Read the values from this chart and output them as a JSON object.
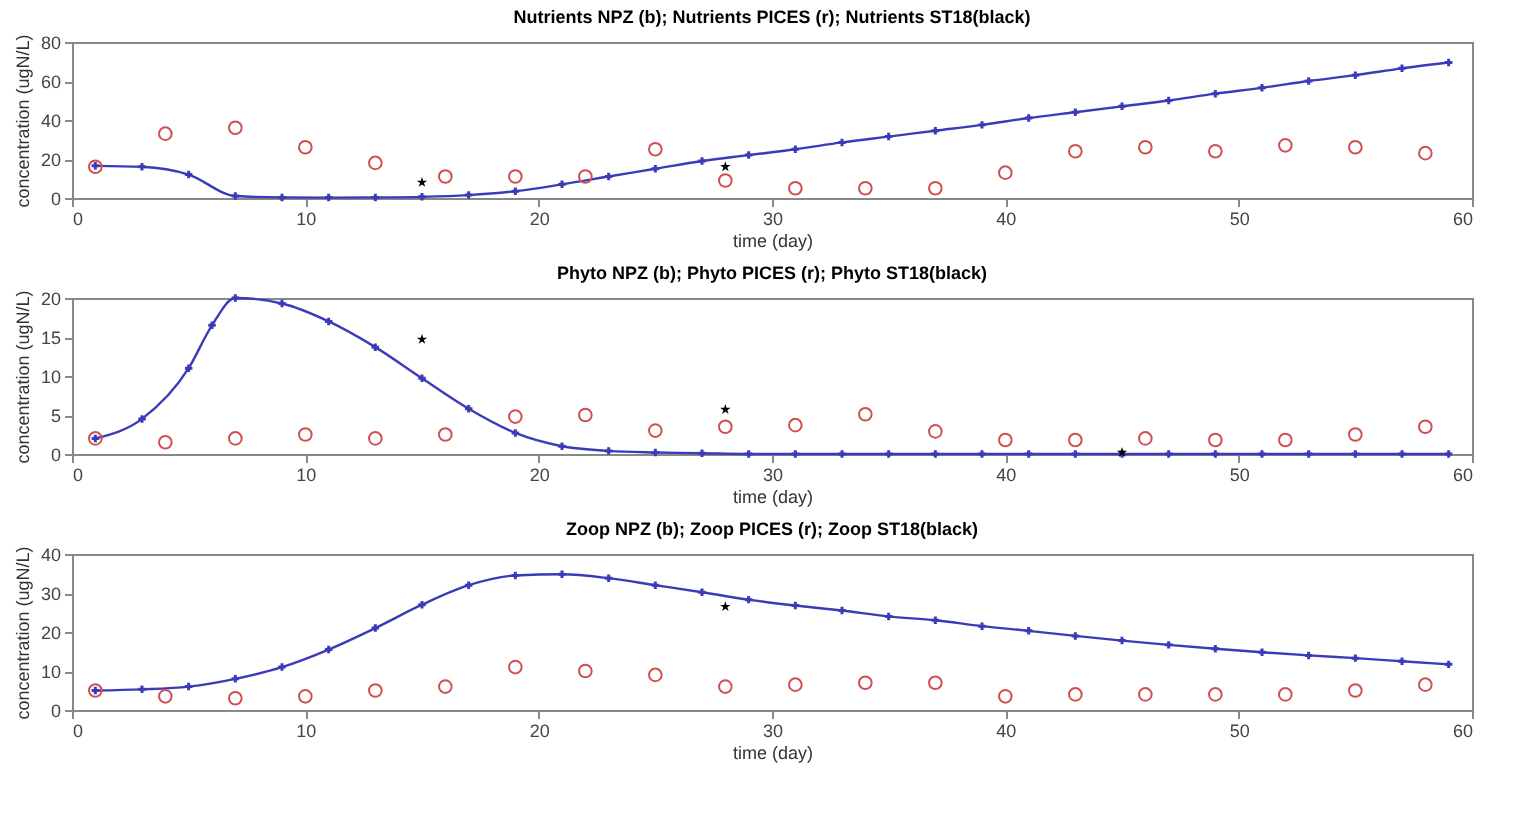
{
  "chart_data": [
    {
      "type": "line",
      "title": "Nutrients NPZ (b); Nutrients PICES (r); Nutrients ST18(black)",
      "xlabel": "time (day)",
      "ylabel": "concentration (ugN/L)",
      "xlim": [
        0,
        60
      ],
      "xticks": [
        0,
        10,
        20,
        30,
        40,
        50,
        60
      ],
      "ylim": [
        0,
        80
      ],
      "yticks": [
        0,
        20,
        40,
        60,
        80
      ],
      "grid": false,
      "series": [
        {
          "marker": "cross",
          "color": "#3b3bb8",
          "x": [
            1,
            3,
            5,
            7,
            9,
            11,
            13,
            15,
            17,
            19,
            21,
            23,
            25,
            27,
            29,
            31,
            33,
            35,
            37,
            39,
            41,
            43,
            45,
            47,
            49,
            51,
            53,
            55,
            57,
            59
          ],
          "values": [
            16.5,
            16,
            12,
            1,
            0.3,
            0.2,
            0.3,
            0.6,
            1.5,
            3.5,
            7,
            11,
            15,
            19,
            22,
            25,
            28.5,
            31.5,
            34.5,
            37.5,
            41,
            44,
            47,
            50,
            53.5,
            56.5,
            60,
            63,
            66.5,
            69.5
          ]
        },
        {
          "type": "scatter",
          "marker": "circle",
          "color": "#d05050",
          "x": [
            1,
            4,
            7,
            10,
            13,
            16,
            19,
            22,
            25,
            28,
            31,
            34,
            37,
            40,
            43,
            46,
            49,
            52,
            55,
            58
          ],
          "values": [
            16,
            33,
            36,
            26,
            18,
            11,
            11,
            11,
            25,
            9,
            5,
            5,
            5,
            13,
            24,
            26,
            24,
            27,
            26,
            23
          ]
        },
        {
          "type": "scatter",
          "marker": "star",
          "color": "#000000",
          "x": [
            15,
            28
          ],
          "values": [
            8,
            16
          ]
        }
      ]
    },
    {
      "type": "line",
      "title": "Phyto NPZ (b); Phyto PICES (r); Phyto ST18(black)",
      "xlabel": "time (day)",
      "ylabel": "concentration (ugN/L)",
      "xlim": [
        0,
        60
      ],
      "xticks": [
        0,
        10,
        20,
        30,
        40,
        50,
        60
      ],
      "ylim": [
        0,
        20
      ],
      "yticks": [
        0,
        5,
        10,
        15,
        20
      ],
      "grid": false,
      "series": [
        {
          "marker": "cross",
          "color": "#3b3bb8",
          "x": [
            1,
            3,
            5,
            6,
            7,
            9,
            11,
            13,
            15,
            17,
            19,
            21,
            23,
            25,
            27,
            29,
            31,
            33,
            35,
            37,
            39,
            41,
            43,
            45,
            47,
            49,
            51,
            53,
            55,
            57,
            59
          ],
          "values": [
            2,
            4.5,
            11,
            16.5,
            20,
            19.3,
            17,
            13.7,
            9.7,
            5.8,
            2.7,
            1,
            0.4,
            0.2,
            0.1,
            0,
            0,
            0,
            0,
            0,
            0,
            0,
            0,
            0,
            0,
            0,
            0,
            0,
            0,
            0,
            0
          ]
        },
        {
          "type": "scatter",
          "marker": "circle",
          "color": "#d05050",
          "x": [
            1,
            4,
            7,
            10,
            13,
            16,
            19,
            22,
            25,
            28,
            31,
            34,
            37,
            40,
            43,
            46,
            49,
            52,
            55,
            58
          ],
          "values": [
            2,
            1.5,
            2,
            2.5,
            2,
            2.5,
            4.8,
            5,
            3,
            3.5,
            3.7,
            5.1,
            2.9,
            1.8,
            1.8,
            2,
            1.8,
            1.8,
            2.5,
            3.5
          ]
        },
        {
          "type": "scatter",
          "marker": "star",
          "color": "#000000",
          "x": [
            15,
            28,
            45
          ],
          "values": [
            14.7,
            5.7,
            0.2
          ]
        }
      ]
    },
    {
      "type": "line",
      "title": "Zoop NPZ (b); Zoop PICES (r); Zoop ST18(black)",
      "xlabel": "time (day)",
      "ylabel": "concentration (ugN/L)",
      "xlim": [
        0,
        60
      ],
      "xticks": [
        0,
        10,
        20,
        30,
        40,
        50,
        60
      ],
      "ylim": [
        0,
        40
      ],
      "yticks": [
        0,
        10,
        20,
        30,
        40
      ],
      "grid": false,
      "series": [
        {
          "marker": "cross",
          "color": "#3b3bb8",
          "x": [
            1,
            3,
            5,
            7,
            9,
            11,
            13,
            15,
            17,
            19,
            21,
            23,
            25,
            27,
            29,
            31,
            33,
            35,
            37,
            39,
            41,
            43,
            45,
            47,
            49,
            51,
            53,
            55,
            57,
            59
          ],
          "values": [
            5,
            5.3,
            6,
            8,
            11,
            15.5,
            21,
            27,
            32,
            34.5,
            34.8,
            33.8,
            32,
            30.2,
            28.3,
            26.8,
            25.5,
            24,
            23,
            21.5,
            20.3,
            19,
            17.8,
            16.7,
            15.7,
            14.8,
            14,
            13.3,
            12.5,
            11.7
          ]
        },
        {
          "type": "scatter",
          "marker": "circle",
          "color": "#d05050",
          "x": [
            1,
            4,
            7,
            10,
            13,
            16,
            19,
            22,
            25,
            28,
            31,
            34,
            37,
            40,
            43,
            46,
            49,
            52,
            55,
            58
          ],
          "values": [
            5,
            3.5,
            3,
            3.5,
            5,
            6,
            11,
            10,
            9,
            6,
            6.5,
            7,
            7,
            3.5,
            4,
            4,
            4,
            4,
            5,
            6.5
          ]
        },
        {
          "type": "scatter",
          "marker": "star",
          "color": "#000000",
          "x": [
            28
          ],
          "values": [
            26.5
          ]
        }
      ]
    }
  ]
}
